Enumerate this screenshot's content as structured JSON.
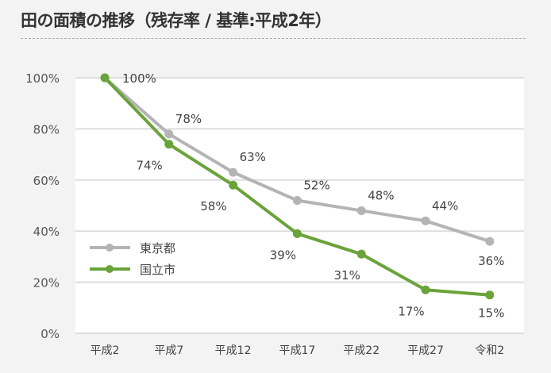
{
  "chart_data": {
    "type": "line",
    "title": "田の面積の推移（残存率 / 基準:平成2年）",
    "categories": [
      "平成2",
      "平成7",
      "平成12",
      "平成17",
      "平成22",
      "平成27",
      "令和2"
    ],
    "series": [
      {
        "name": "東京都",
        "values": [
          100,
          78,
          63,
          52,
          48,
          44,
          36
        ],
        "color": "#b4b4b4"
      },
      {
        "name": "国立市",
        "values": [
          100,
          74,
          58,
          39,
          31,
          17,
          15
        ],
        "color": "#6aa33a"
      }
    ],
    "data_labels": {
      "東京都": [
        "",
        "78%",
        "63%",
        "52%",
        "48%",
        "44%",
        "36%"
      ],
      "国立市": [
        "100%",
        "74%",
        "58%",
        "39%",
        "31%",
        "17%",
        "15%"
      ]
    },
    "yticks": [
      "0%",
      "20%",
      "40%",
      "60%",
      "80%",
      "100%"
    ],
    "ylim": [
      0,
      100
    ],
    "grid": true,
    "legend": "left-middle",
    "xlabel": "",
    "ylabel": ""
  }
}
